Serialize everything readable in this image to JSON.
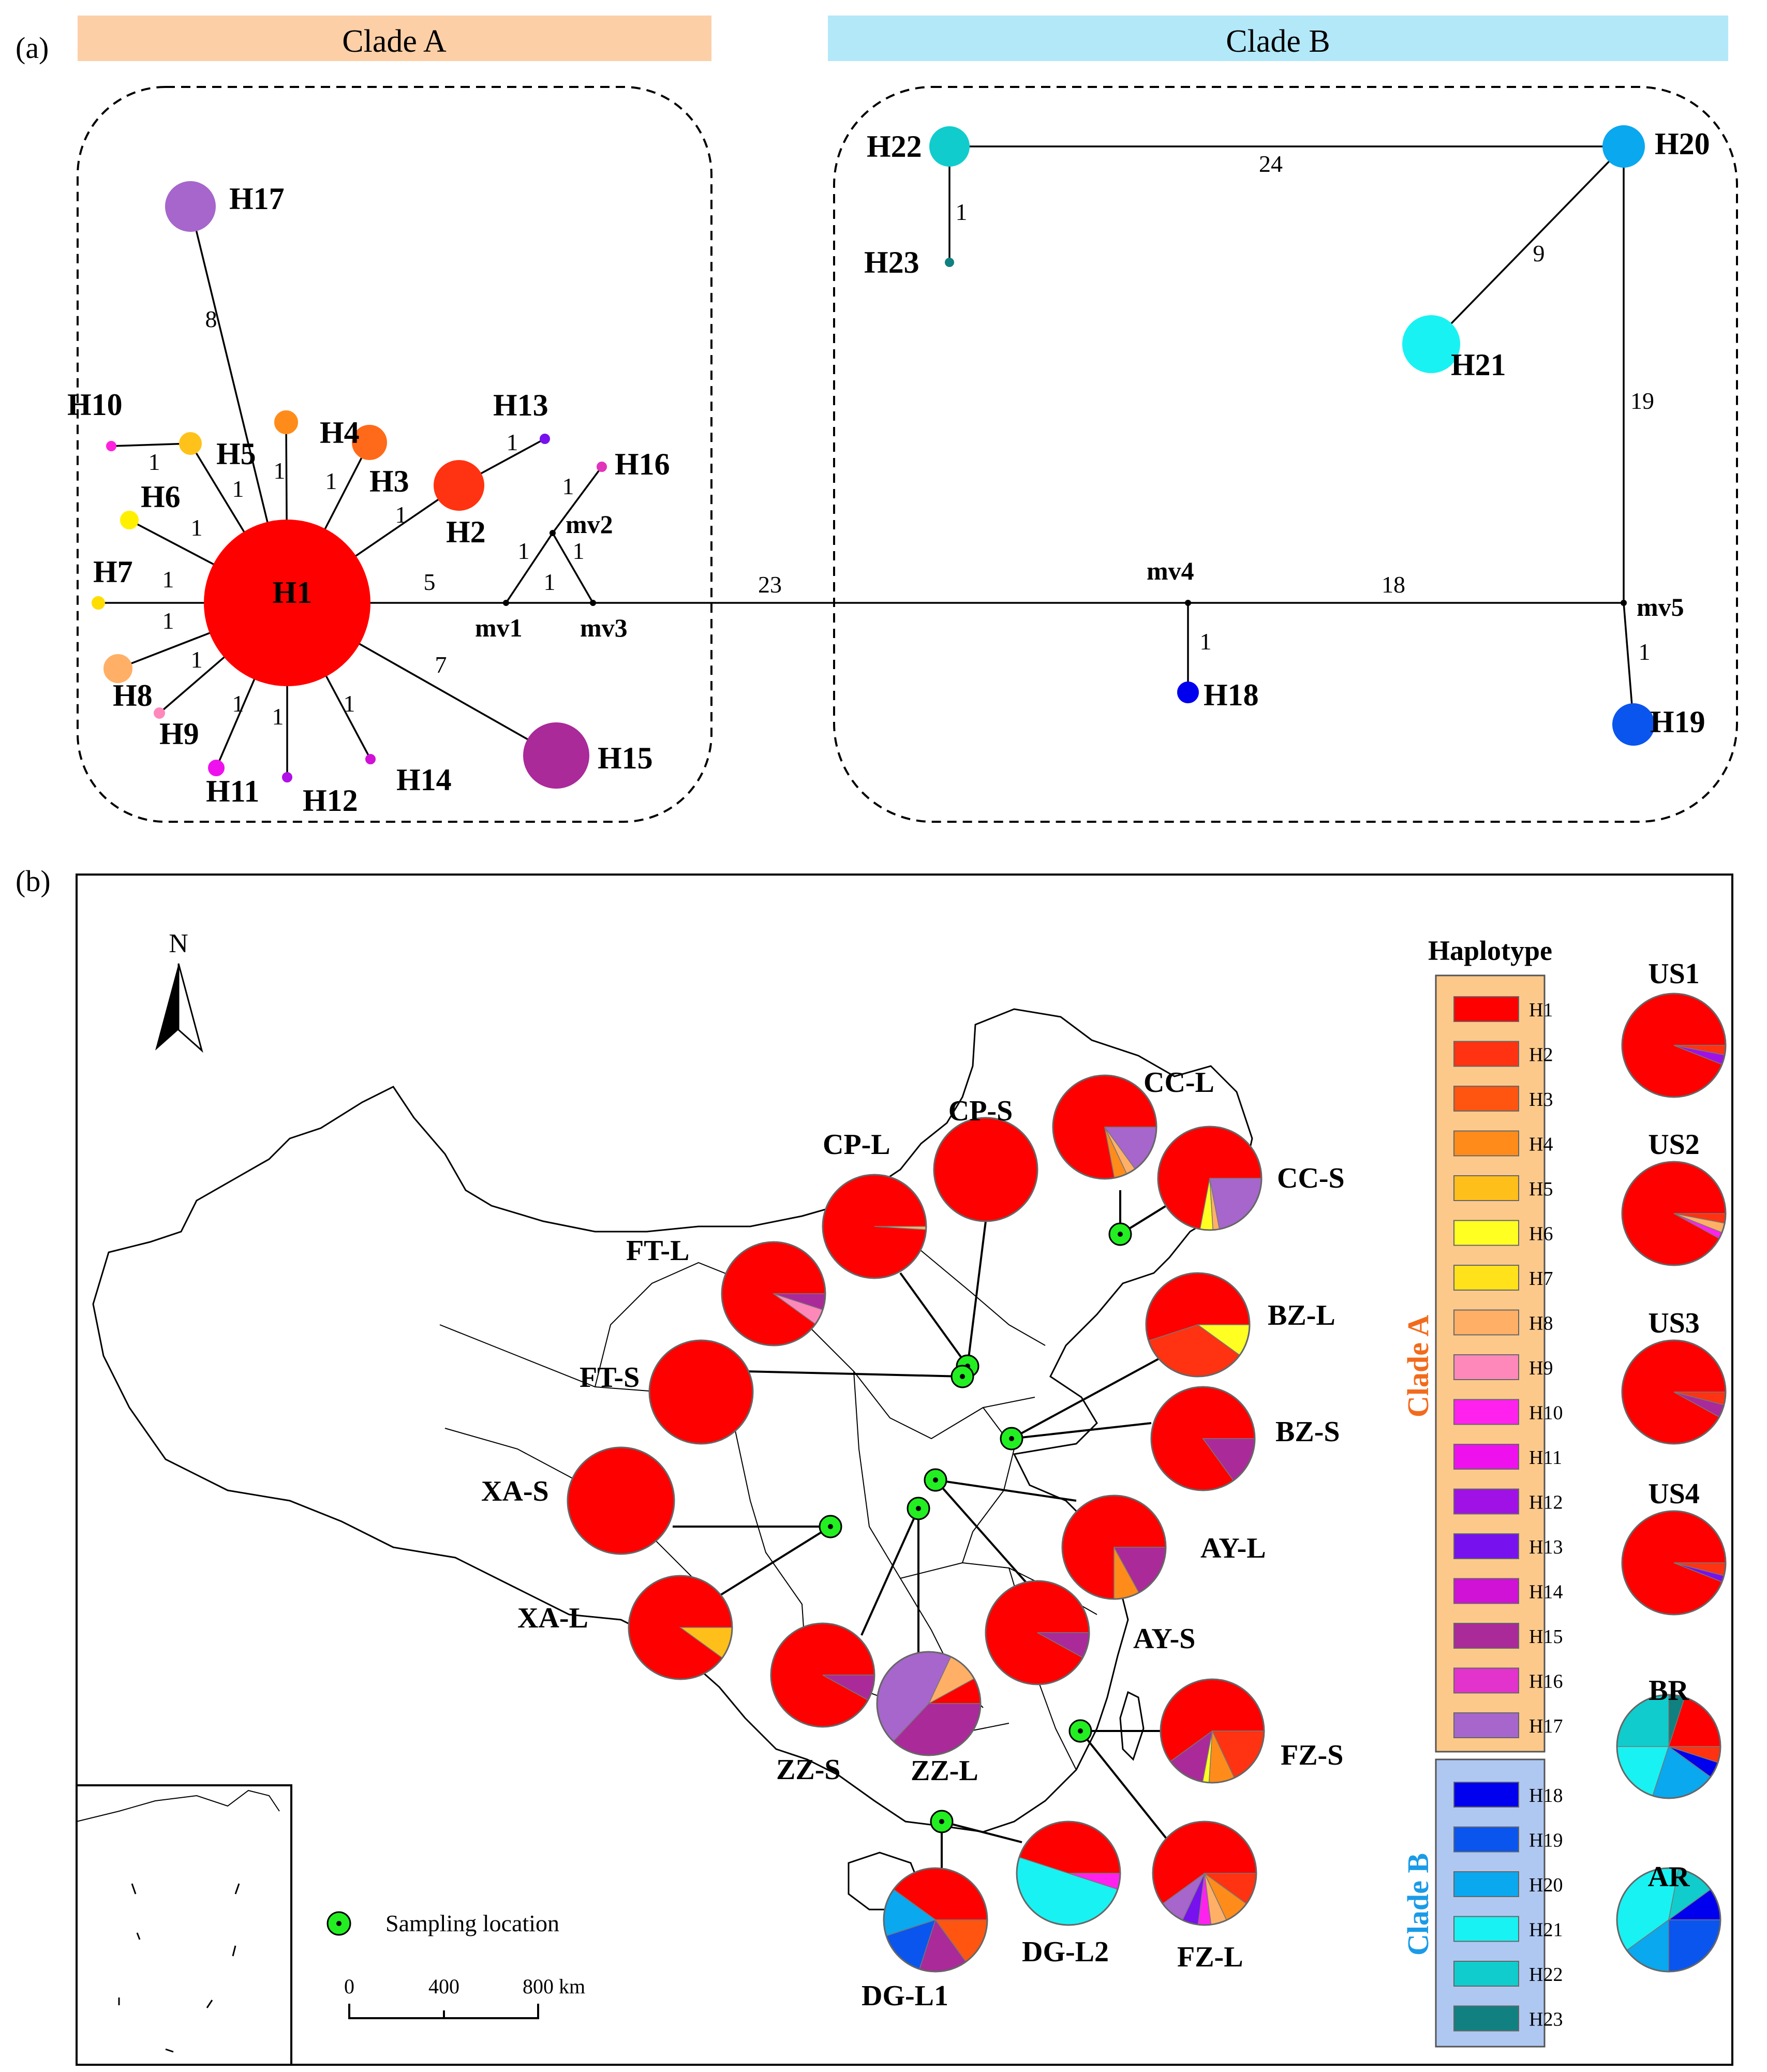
{
  "panel_a": {
    "label": "(a)",
    "clade_a_title": "Clade A",
    "clade_b_title": "Clade B",
    "clade_a_color": "#FCCFA6",
    "clade_b_color": "#B3E8F9",
    "nodes": [
      {
        "id": "H1",
        "label": "H1",
        "color": "#FF0000"
      },
      {
        "id": "H2",
        "label": "H2",
        "color": "#FF3311"
      },
      {
        "id": "H3",
        "label": "H3",
        "color": "#FF6A1A"
      },
      {
        "id": "H4",
        "label": "H4",
        "color": "#FF8C1A"
      },
      {
        "id": "H5",
        "label": "H5",
        "color": "#FFC21A"
      },
      {
        "id": "H6",
        "label": "H6",
        "color": "#FFF000"
      },
      {
        "id": "H7",
        "label": "H7",
        "color": "#FFDD00"
      },
      {
        "id": "H8",
        "label": "H8",
        "color": "#FFB066"
      },
      {
        "id": "H9",
        "label": "H9",
        "color": "#FF88BB"
      },
      {
        "id": "H10",
        "label": "H10",
        "color": "#FF22DD"
      },
      {
        "id": "H11",
        "label": "H11",
        "color": "#EE11EE"
      },
      {
        "id": "H12",
        "label": "H12",
        "color": "#B011E6"
      },
      {
        "id": "H13",
        "label": "H13",
        "color": "#7711EE"
      },
      {
        "id": "H14",
        "label": "H14",
        "color": "#D011D6"
      },
      {
        "id": "H15",
        "label": "H15",
        "color": "#AA2A99"
      },
      {
        "id": "H16",
        "label": "H16",
        "color": "#E233BB"
      },
      {
        "id": "H17",
        "label": "H17",
        "color": "#A666CC"
      },
      {
        "id": "H18",
        "label": "H18",
        "color": "#0000EE"
      },
      {
        "id": "H19",
        "label": "H19",
        "color": "#0A55EE"
      },
      {
        "id": "H20",
        "label": "H20",
        "color": "#0AA8EE"
      },
      {
        "id": "H21",
        "label": "H21",
        "color": "#19F2F2"
      },
      {
        "id": "H22",
        "label": "H22",
        "color": "#11CCCC"
      },
      {
        "id": "H23",
        "label": "H23",
        "color": "#118080"
      }
    ],
    "median_vectors": [
      "mv1",
      "mv2",
      "mv3",
      "mv4",
      "mv5"
    ],
    "edges": [
      {
        "from": "H1",
        "to": "H17",
        "label": "8"
      },
      {
        "from": "H5",
        "to": "H10",
        "label": "1"
      },
      {
        "from": "H1",
        "to": "H5",
        "label": "1"
      },
      {
        "from": "H1",
        "to": "H4",
        "label": "1"
      },
      {
        "from": "H1",
        "to": "H3",
        "label": "1"
      },
      {
        "from": "H1",
        "to": "H2",
        "label": "1"
      },
      {
        "from": "H2",
        "to": "H13",
        "label": "1"
      },
      {
        "from": "H1",
        "to": "H6",
        "label": "1"
      },
      {
        "from": "H1",
        "to": "H7",
        "label": "1"
      },
      {
        "from": "H1",
        "to": "H8",
        "label": "1"
      },
      {
        "from": "H1",
        "to": "H9",
        "label": "1"
      },
      {
        "from": "H1",
        "to": "H11",
        "label": "1"
      },
      {
        "from": "H1",
        "to": "H12",
        "label": "1"
      },
      {
        "from": "H1",
        "to": "H14",
        "label": "1"
      },
      {
        "from": "H1",
        "to": "H15",
        "label": "7"
      },
      {
        "from": "H1",
        "to": "mv1",
        "label": "5"
      },
      {
        "from": "mv1",
        "to": "mv2",
        "label": "1"
      },
      {
        "from": "mv1",
        "to": "mv3",
        "label": "1"
      },
      {
        "from": "mv2",
        "to": "mv3",
        "label": "1"
      },
      {
        "from": "mv2",
        "to": "H16",
        "label": "1"
      },
      {
        "from": "mv3",
        "to": "mv4",
        "label": "23"
      },
      {
        "from": "mv4",
        "to": "H18",
        "label": "1"
      },
      {
        "from": "mv4",
        "to": "mv5",
        "label": "18"
      },
      {
        "from": "mv5",
        "to": "H19",
        "label": "1"
      },
      {
        "from": "mv5",
        "to": "H20",
        "label": "19"
      },
      {
        "from": "H20",
        "to": "H22",
        "label": "24"
      },
      {
        "from": "H20",
        "to": "H21",
        "label": "9"
      },
      {
        "from": "H22",
        "to": "H23",
        "label": "1"
      }
    ]
  },
  "panel_b": {
    "label": "(b)",
    "north_label": "N",
    "sampling_legend": "Sampling location",
    "scale_labels": [
      "0",
      "400",
      "800 km"
    ],
    "legend_title": "Haplotype",
    "clade_a_label": "Clade A",
    "clade_b_label": "Clade B",
    "clade_a_label_color": "#F26B1D",
    "clade_b_label_color": "#1A9BE8",
    "clade_a_box_color": "#FCC98B",
    "clade_b_box_color": "#AFC8F2",
    "clade_a_haplotypes": [
      {
        "name": "H1",
        "color": "#FF0000"
      },
      {
        "name": "H2",
        "color": "#FF3311"
      },
      {
        "name": "H3",
        "color": "#FF5511"
      },
      {
        "name": "H4",
        "color": "#FF8C1A"
      },
      {
        "name": "H5",
        "color": "#FFBF1A"
      },
      {
        "name": "H6",
        "color": "#FFFF22"
      },
      {
        "name": "H7",
        "color": "#FFE21A"
      },
      {
        "name": "H8",
        "color": "#FFB066"
      },
      {
        "name": "H9",
        "color": "#FF88BB"
      },
      {
        "name": "H10",
        "color": "#FF22EE"
      },
      {
        "name": "H11",
        "color": "#EE11EE"
      },
      {
        "name": "H12",
        "color": "#A011E6"
      },
      {
        "name": "H13",
        "color": "#7711EE"
      },
      {
        "name": "H14",
        "color": "#D011D6"
      },
      {
        "name": "H15",
        "color": "#AA2A99"
      },
      {
        "name": "H16",
        "color": "#E233CC"
      },
      {
        "name": "H17",
        "color": "#A666CC"
      }
    ],
    "clade_b_haplotypes": [
      {
        "name": "H18",
        "color": "#0000EE"
      },
      {
        "name": "H19",
        "color": "#0A55EE"
      },
      {
        "name": "H20",
        "color": "#0AA8EE"
      },
      {
        "name": "H21",
        "color": "#19F2F2"
      },
      {
        "name": "H22",
        "color": "#11CCCC"
      },
      {
        "name": "H23",
        "color": "#118080"
      }
    ],
    "populations": [
      {
        "name": "CC-L",
        "slices": [
          [
            "H1",
            0.78
          ],
          [
            "H4",
            0.04
          ],
          [
            "H8",
            0.03
          ],
          [
            "H17",
            0.15
          ]
        ]
      },
      {
        "name": "CC-S",
        "slices": [
          [
            "H1",
            0.72
          ],
          [
            "H6",
            0.04
          ],
          [
            "H8",
            0.02
          ],
          [
            "H17",
            0.22
          ]
        ]
      },
      {
        "name": "CP-S",
        "slices": [
          [
            "H1",
            1.0
          ]
        ]
      },
      {
        "name": "CP-L",
        "slices": [
          [
            "H1",
            0.99
          ],
          [
            "H8",
            0.01
          ]
        ]
      },
      {
        "name": "FT-L",
        "slices": [
          [
            "H1",
            0.9
          ],
          [
            "H9",
            0.05
          ],
          [
            "H15",
            0.05
          ]
        ]
      },
      {
        "name": "FT-S",
        "slices": [
          [
            "H1",
            1.0
          ]
        ]
      },
      {
        "name": "BZ-L",
        "slices": [
          [
            "H1",
            0.55
          ],
          [
            "H2",
            0.35
          ],
          [
            "H6",
            0.1
          ]
        ]
      },
      {
        "name": "BZ-S",
        "slices": [
          [
            "H1",
            0.85
          ],
          [
            "H15",
            0.15
          ]
        ]
      },
      {
        "name": "XA-S",
        "slices": [
          [
            "H1",
            1.0
          ]
        ]
      },
      {
        "name": "AY-L",
        "slices": [
          [
            "H1",
            0.75
          ],
          [
            "H4",
            0.08
          ],
          [
            "H15",
            0.17
          ]
        ]
      },
      {
        "name": "XA-L",
        "slices": [
          [
            "H1",
            0.9
          ],
          [
            "H5",
            0.1
          ]
        ]
      },
      {
        "name": "AY-S",
        "slices": [
          [
            "H1",
            0.92
          ],
          [
            "H15",
            0.08
          ]
        ]
      },
      {
        "name": "ZZ-S",
        "slices": [
          [
            "H1",
            0.92
          ],
          [
            "H15",
            0.08
          ]
        ]
      },
      {
        "name": "ZZ-L",
        "slices": [
          [
            "H1",
            0.08
          ],
          [
            "H8",
            0.1
          ],
          [
            "H17",
            0.45
          ],
          [
            "H15",
            0.37
          ]
        ]
      },
      {
        "name": "FZ-S",
        "slices": [
          [
            "H1",
            0.6
          ],
          [
            "H15",
            0.12
          ],
          [
            "H6",
            0.02
          ],
          [
            "H4",
            0.08
          ],
          [
            "H2",
            0.18
          ]
        ]
      },
      {
        "name": "FZ-L",
        "slices": [
          [
            "H1",
            0.6
          ],
          [
            "H17",
            0.08
          ],
          [
            "H13",
            0.05
          ],
          [
            "H10",
            0.04
          ],
          [
            "H8",
            0.05
          ],
          [
            "H4",
            0.08
          ],
          [
            "H2",
            0.1
          ]
        ]
      },
      {
        "name": "DG-L2",
        "slices": [
          [
            "H1",
            0.45
          ],
          [
            "H21",
            0.5
          ],
          [
            "H10",
            0.05
          ]
        ]
      },
      {
        "name": "DG-L1",
        "slices": [
          [
            "H1",
            0.4
          ],
          [
            "H20",
            0.15
          ],
          [
            "H19",
            0.15
          ],
          [
            "H15",
            0.15
          ],
          [
            "H3",
            0.15
          ]
        ]
      },
      {
        "name": "US1",
        "slices": [
          [
            "H1",
            0.94
          ],
          [
            "H12",
            0.03
          ],
          [
            "H2",
            0.03
          ]
        ]
      },
      {
        "name": "US2",
        "slices": [
          [
            "H1",
            0.92
          ],
          [
            "H10",
            0.02
          ],
          [
            "H8",
            0.03
          ],
          [
            "H2",
            0.03
          ]
        ]
      },
      {
        "name": "US3",
        "slices": [
          [
            "H1",
            0.92
          ],
          [
            "H15",
            0.04
          ],
          [
            "H2",
            0.04
          ]
        ]
      },
      {
        "name": "US4",
        "slices": [
          [
            "H1",
            0.94
          ],
          [
            "H13",
            0.02
          ],
          [
            "H2",
            0.04
          ]
        ]
      },
      {
        "name": "BR",
        "slices": [
          [
            "H1",
            0.2
          ],
          [
            "H23",
            0.05
          ],
          [
            "H22",
            0.25
          ],
          [
            "H21",
            0.2
          ],
          [
            "H20",
            0.2
          ],
          [
            "H18",
            0.05
          ],
          [
            "H2",
            0.05
          ]
        ]
      },
      {
        "name": "AR",
        "slices": [
          [
            "H18",
            0.1
          ],
          [
            "H22",
            0.12
          ],
          [
            "H21",
            0.38
          ],
          [
            "H20",
            0.15
          ],
          [
            "H19",
            0.25
          ]
        ]
      }
    ]
  }
}
